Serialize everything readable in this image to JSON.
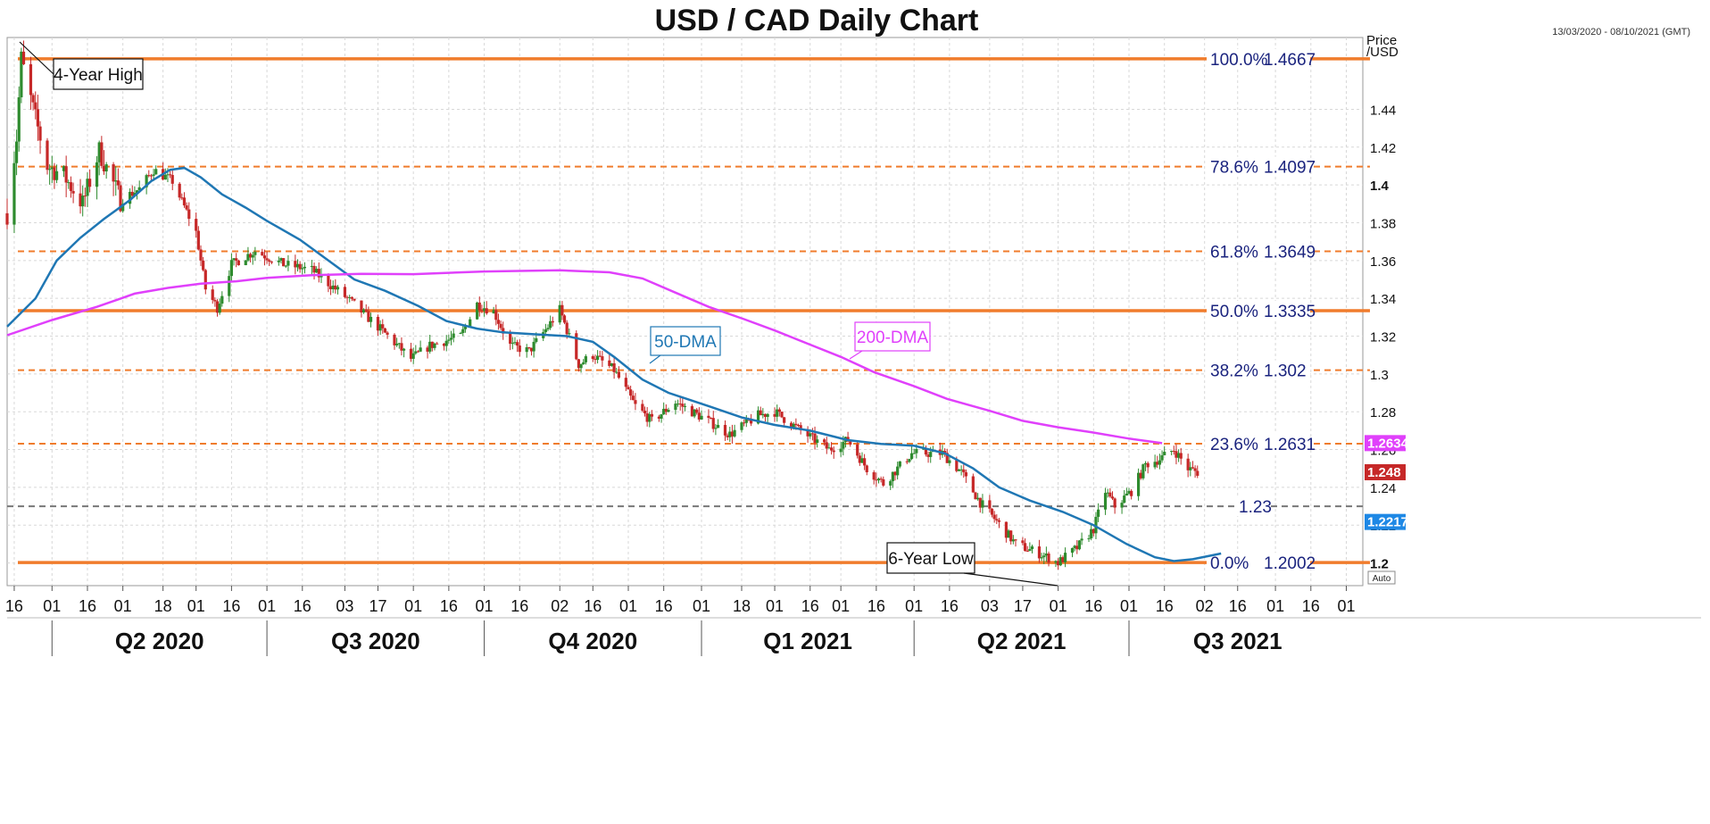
{
  "chart_data": {
    "type": "candlestick",
    "title": "USD / CAD Daily Chart",
    "date_range": "13/03/2020 - 08/10/2021 (GMT)",
    "price_label_line1": "Price",
    "price_label_line2": "/USD",
    "auto_label": "Auto",
    "ylim": [
      1.188,
      1.478
    ],
    "y_ticks": [
      {
        "value": 1.2,
        "label": "1.2",
        "bold": true
      },
      {
        "value": 1.22,
        "label": "1.22",
        "bold": false
      },
      {
        "value": 1.24,
        "label": "1.24",
        "bold": false
      },
      {
        "value": 1.26,
        "label": "1.26",
        "bold": false
      },
      {
        "value": 1.28,
        "label": "1.28",
        "bold": false
      },
      {
        "value": 1.3,
        "label": "1.3",
        "bold": false
      },
      {
        "value": 1.32,
        "label": "1.32",
        "bold": false
      },
      {
        "value": 1.34,
        "label": "1.34",
        "bold": false
      },
      {
        "value": 1.36,
        "label": "1.36",
        "bold": false
      },
      {
        "value": 1.38,
        "label": "1.38",
        "bold": false
      },
      {
        "value": 1.4,
        "label": "1.4",
        "bold": true
      },
      {
        "value": 1.42,
        "label": "1.42",
        "bold": false
      },
      {
        "value": 1.44,
        "label": "1.44",
        "bold": false
      }
    ],
    "x_ticks": [
      {
        "date": "2020-03-16",
        "label": "16"
      },
      {
        "date": "2020-04-01",
        "label": "01"
      },
      {
        "date": "2020-04-16",
        "label": "16"
      },
      {
        "date": "2020-05-01",
        "label": "01"
      },
      {
        "date": "2020-05-18",
        "label": "18"
      },
      {
        "date": "2020-06-01",
        "label": "01"
      },
      {
        "date": "2020-06-16",
        "label": "16"
      },
      {
        "date": "2020-07-01",
        "label": "01"
      },
      {
        "date": "2020-07-16",
        "label": "16"
      },
      {
        "date": "2020-08-03",
        "label": "03"
      },
      {
        "date": "2020-08-17",
        "label": "17"
      },
      {
        "date": "2020-09-01",
        "label": "01"
      },
      {
        "date": "2020-09-16",
        "label": "16"
      },
      {
        "date": "2020-10-01",
        "label": "01"
      },
      {
        "date": "2020-10-16",
        "label": "16"
      },
      {
        "date": "2020-11-02",
        "label": "02"
      },
      {
        "date": "2020-11-16",
        "label": "16"
      },
      {
        "date": "2020-12-01",
        "label": "01"
      },
      {
        "date": "2020-12-16",
        "label": "16"
      },
      {
        "date": "2021-01-01",
        "label": "01"
      },
      {
        "date": "2021-01-18",
        "label": "18"
      },
      {
        "date": "2021-02-01",
        "label": "01"
      },
      {
        "date": "2021-02-16",
        "label": "16"
      },
      {
        "date": "2021-03-01",
        "label": "01"
      },
      {
        "date": "2021-03-16",
        "label": "16"
      },
      {
        "date": "2021-04-01",
        "label": "01"
      },
      {
        "date": "2021-04-16",
        "label": "16"
      },
      {
        "date": "2021-05-03",
        "label": "03"
      },
      {
        "date": "2021-05-17",
        "label": "17"
      },
      {
        "date": "2021-06-01",
        "label": "01"
      },
      {
        "date": "2021-06-16",
        "label": "16"
      },
      {
        "date": "2021-07-01",
        "label": "01"
      },
      {
        "date": "2021-07-16",
        "label": "16"
      },
      {
        "date": "2021-08-02",
        "label": "02"
      },
      {
        "date": "2021-08-16",
        "label": "16"
      },
      {
        "date": "2021-09-01",
        "label": "01"
      },
      {
        "date": "2021-09-16",
        "label": "16"
      },
      {
        "date": "2021-10-01",
        "label": "01"
      }
    ],
    "quarters": [
      {
        "label": "Q2 2020",
        "start": "2020-04-01",
        "end": "2020-07-01"
      },
      {
        "label": "Q3 2020",
        "start": "2020-07-01",
        "end": "2020-10-01"
      },
      {
        "label": "Q4 2020",
        "start": "2020-10-01",
        "end": "2021-01-01"
      },
      {
        "label": "Q1 2021",
        "start": "2021-01-01",
        "end": "2021-04-01"
      },
      {
        "label": "Q2 2021",
        "start": "2021-04-01",
        "end": "2021-07-01"
      },
      {
        "label": "Q3 2021",
        "start": "2021-07-01",
        "end": "2021-10-01"
      }
    ],
    "fib_levels": [
      {
        "pct": "100.0%",
        "value": 1.4667,
        "label": "1.4667",
        "style": "solid"
      },
      {
        "pct": "78.6%",
        "value": 1.4097,
        "label": "1.4097",
        "style": "dashed"
      },
      {
        "pct": "61.8%",
        "value": 1.3649,
        "label": "1.3649",
        "style": "dashed"
      },
      {
        "pct": "50.0%",
        "value": 1.3335,
        "label": "1.3335",
        "style": "solid"
      },
      {
        "pct": "38.2%",
        "value": 1.302,
        "label": "1.302",
        "style": "dashed"
      },
      {
        "pct": "23.6%",
        "value": 1.2631,
        "label": "1.2631",
        "style": "dashed"
      },
      {
        "pct": "0.0%",
        "value": 1.2002,
        "label": "1.2002",
        "style": "solid"
      }
    ],
    "support_line": {
      "value": 1.23,
      "label": "1.23"
    },
    "price_badges": [
      {
        "value": 1.2634,
        "label": "1.2634",
        "color": "#e040fb"
      },
      {
        "value": 1.248,
        "label": "1.248",
        "color": "#c62828"
      },
      {
        "value": 1.2217,
        "label": "1.2217",
        "color": "#1e88e5"
      }
    ],
    "series": [
      {
        "name": "50-DMA",
        "color": "#1f77b4",
        "points": [
          [
            "2020-03-13",
            1.325
          ],
          [
            "2020-03-25",
            1.34
          ],
          [
            "2020-04-03",
            1.36
          ],
          [
            "2020-04-13",
            1.372
          ],
          [
            "2020-04-23",
            1.382
          ],
          [
            "2020-05-04",
            1.392
          ],
          [
            "2020-05-13",
            1.402
          ],
          [
            "2020-05-21",
            1.408
          ],
          [
            "2020-05-27",
            1.409
          ],
          [
            "2020-06-03",
            1.404
          ],
          [
            "2020-06-12",
            1.395
          ],
          [
            "2020-06-22",
            1.388
          ],
          [
            "2020-07-01",
            1.381
          ],
          [
            "2020-07-15",
            1.371
          ],
          [
            "2020-07-27",
            1.36
          ],
          [
            "2020-08-07",
            1.35
          ],
          [
            "2020-08-20",
            1.344
          ],
          [
            "2020-09-03",
            1.336
          ],
          [
            "2020-09-15",
            1.328
          ],
          [
            "2020-09-28",
            1.324
          ],
          [
            "2020-10-09",
            1.322
          ],
          [
            "2020-10-22",
            1.321
          ],
          [
            "2020-11-05",
            1.32
          ],
          [
            "2020-11-16",
            1.317
          ],
          [
            "2020-11-25",
            1.309
          ],
          [
            "2020-12-07",
            1.297
          ],
          [
            "2020-12-18",
            1.29
          ],
          [
            "2021-01-04",
            1.283
          ],
          [
            "2021-01-18",
            1.277
          ],
          [
            "2021-02-01",
            1.273
          ],
          [
            "2021-02-16",
            1.27
          ],
          [
            "2021-03-04",
            1.265
          ],
          [
            "2021-03-18",
            1.263
          ],
          [
            "2021-04-01",
            1.262
          ],
          [
            "2021-04-14",
            1.258
          ],
          [
            "2021-04-26",
            1.25
          ],
          [
            "2021-05-07",
            1.24
          ],
          [
            "2021-05-20",
            1.233
          ],
          [
            "2021-06-03",
            1.227
          ],
          [
            "2021-06-16",
            1.22
          ],
          [
            "2021-06-30",
            1.21
          ],
          [
            "2021-07-12",
            1.203
          ],
          [
            "2021-07-20",
            1.201
          ],
          [
            "2021-07-28",
            1.202
          ],
          [
            "2021-08-09",
            1.205
          ]
        ]
      },
      {
        "name": "200-DMA",
        "color": "#e040fb",
        "points": [
          [
            "2020-03-13",
            1.3205
          ],
          [
            "2020-04-01",
            1.3285
          ],
          [
            "2020-04-20",
            1.3355
          ],
          [
            "2020-05-06",
            1.3425
          ],
          [
            "2020-05-20",
            1.3455
          ],
          [
            "2020-06-03",
            1.3478
          ],
          [
            "2020-06-18",
            1.349
          ],
          [
            "2020-07-01",
            1.3508
          ],
          [
            "2020-07-20",
            1.3522
          ],
          [
            "2020-08-10",
            1.353
          ],
          [
            "2020-09-01",
            1.3528
          ],
          [
            "2020-10-01",
            1.3542
          ],
          [
            "2020-11-02",
            1.3548
          ],
          [
            "2020-11-23",
            1.3538
          ],
          [
            "2020-12-07",
            1.3505
          ],
          [
            "2020-12-21",
            1.343
          ],
          [
            "2021-01-04",
            1.3355
          ],
          [
            "2021-01-19",
            1.329
          ],
          [
            "2021-02-01",
            1.323
          ],
          [
            "2021-02-15",
            1.316
          ],
          [
            "2021-03-01",
            1.309
          ],
          [
            "2021-03-15",
            1.301
          ],
          [
            "2021-04-01",
            1.2935
          ],
          [
            "2021-04-15",
            1.2868
          ],
          [
            "2021-05-03",
            1.2805
          ],
          [
            "2021-05-17",
            1.2752
          ],
          [
            "2021-06-01",
            1.2718
          ],
          [
            "2021-06-15",
            1.2692
          ],
          [
            "2021-07-01",
            1.2658
          ],
          [
            "2021-07-15",
            1.2634
          ]
        ]
      }
    ],
    "price_path": [
      [
        "2020-03-13",
        1.385
      ],
      [
        "2020-03-17",
        1.425
      ],
      [
        "2020-03-19",
        1.4667
      ],
      [
        "2020-03-24",
        1.44
      ],
      [
        "2020-03-30",
        1.41
      ],
      [
        "2020-04-06",
        1.405
      ],
      [
        "2020-04-14",
        1.39
      ],
      [
        "2020-04-21",
        1.418
      ],
      [
        "2020-04-30",
        1.392
      ],
      [
        "2020-05-08",
        1.398
      ],
      [
        "2020-05-14",
        1.408
      ],
      [
        "2020-05-22",
        1.402
      ],
      [
        "2020-06-01",
        1.375
      ],
      [
        "2020-06-05",
        1.345
      ],
      [
        "2020-06-10",
        1.335
      ],
      [
        "2020-06-16",
        1.358
      ],
      [
        "2020-06-26",
        1.365
      ],
      [
        "2020-07-08",
        1.358
      ],
      [
        "2020-07-20",
        1.355
      ],
      [
        "2020-08-04",
        1.34
      ],
      [
        "2020-08-17",
        1.325
      ],
      [
        "2020-08-31",
        1.308
      ],
      [
        "2020-09-08",
        1.315
      ],
      [
        "2020-09-21",
        1.32
      ],
      [
        "2020-09-28",
        1.337
      ],
      [
        "2020-10-05",
        1.333
      ],
      [
        "2020-10-12",
        1.315
      ],
      [
        "2020-10-20",
        1.312
      ],
      [
        "2020-10-28",
        1.325
      ],
      [
        "2020-11-02",
        1.334
      ],
      [
        "2020-11-10",
        1.305
      ],
      [
        "2020-11-16",
        1.31
      ],
      [
        "2020-11-25",
        1.302
      ],
      [
        "2020-12-04",
        1.283
      ],
      [
        "2020-12-11",
        1.275
      ],
      [
        "2020-12-21",
        1.285
      ],
      [
        "2021-01-04",
        1.275
      ],
      [
        "2021-01-13",
        1.268
      ],
      [
        "2021-01-25",
        1.278
      ],
      [
        "2021-02-01",
        1.28
      ],
      [
        "2021-02-12",
        1.27
      ],
      [
        "2021-02-24",
        1.26
      ],
      [
        "2021-03-04",
        1.265
      ],
      [
        "2021-03-12",
        1.25
      ],
      [
        "2021-03-19",
        1.242
      ],
      [
        "2021-03-31",
        1.258
      ],
      [
        "2021-04-13",
        1.258
      ],
      [
        "2021-04-21",
        1.248
      ],
      [
        "2021-04-29",
        1.232
      ],
      [
        "2021-05-06",
        1.222
      ],
      [
        "2021-05-14",
        1.21
      ],
      [
        "2021-05-24",
        1.205
      ],
      [
        "2021-06-01",
        1.2002
      ],
      [
        "2021-06-09",
        1.208
      ],
      [
        "2021-06-16",
        1.218
      ],
      [
        "2021-06-21",
        1.238
      ],
      [
        "2021-06-25",
        1.23
      ],
      [
        "2021-07-02",
        1.238
      ],
      [
        "2021-07-08",
        1.252
      ],
      [
        "2021-07-14",
        1.255
      ],
      [
        "2021-07-20",
        1.26
      ],
      [
        "2021-07-26",
        1.25
      ],
      [
        "2021-07-30",
        1.248
      ]
    ],
    "annotations": [
      {
        "text": "4-Year High",
        "color": "#111111",
        "target_date": "2020-03-19",
        "target_value": 1.4667
      },
      {
        "text": "6-Year Low",
        "color": "#111111",
        "target_date": "2021-06-01",
        "target_value": 1.2002
      },
      {
        "text": "50-DMA",
        "color": "#1f77b4",
        "target_date": "2021-01-01",
        "target_value": 1.312
      },
      {
        "text": "200-DMA",
        "color": "#e040fb",
        "target_date": "2021-03-16",
        "target_value": 1.3095
      }
    ]
  }
}
